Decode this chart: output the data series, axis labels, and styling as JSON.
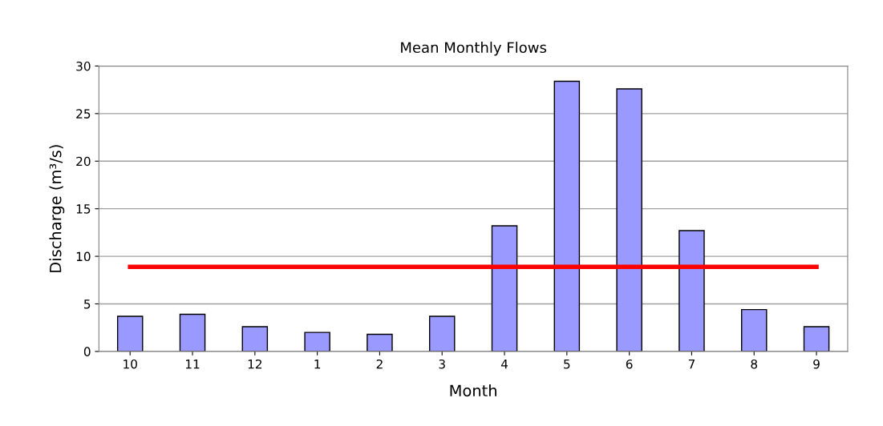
{
  "chart_data": {
    "type": "bar",
    "title": "Mean Monthly Flows",
    "xlabel": "Month",
    "ylabel": "Discharge (m³/s)",
    "categories": [
      "10",
      "11",
      "12",
      "1",
      "2",
      "3",
      "4",
      "5",
      "6",
      "7",
      "8",
      "9"
    ],
    "series": [
      {
        "color": "#9999ff",
        "values": [
          3.7,
          3.9,
          2.6,
          2.0,
          1.8,
          3.7,
          13.2,
          28.4,
          27.6,
          12.7,
          4.4,
          2.6
        ]
      },
      {
        "type": "line",
        "color": "#ff0000",
        "values": [
          8.9,
          8.9,
          8.9,
          8.9,
          8.9,
          8.9,
          8.9,
          8.9,
          8.9,
          8.9,
          8.9,
          8.9
        ]
      }
    ],
    "ylim": [
      0,
      30
    ],
    "yticks": [
      0,
      5,
      10,
      15,
      20,
      25,
      30
    ],
    "grid": "y",
    "marker": "none",
    "line_style": "solid"
  }
}
